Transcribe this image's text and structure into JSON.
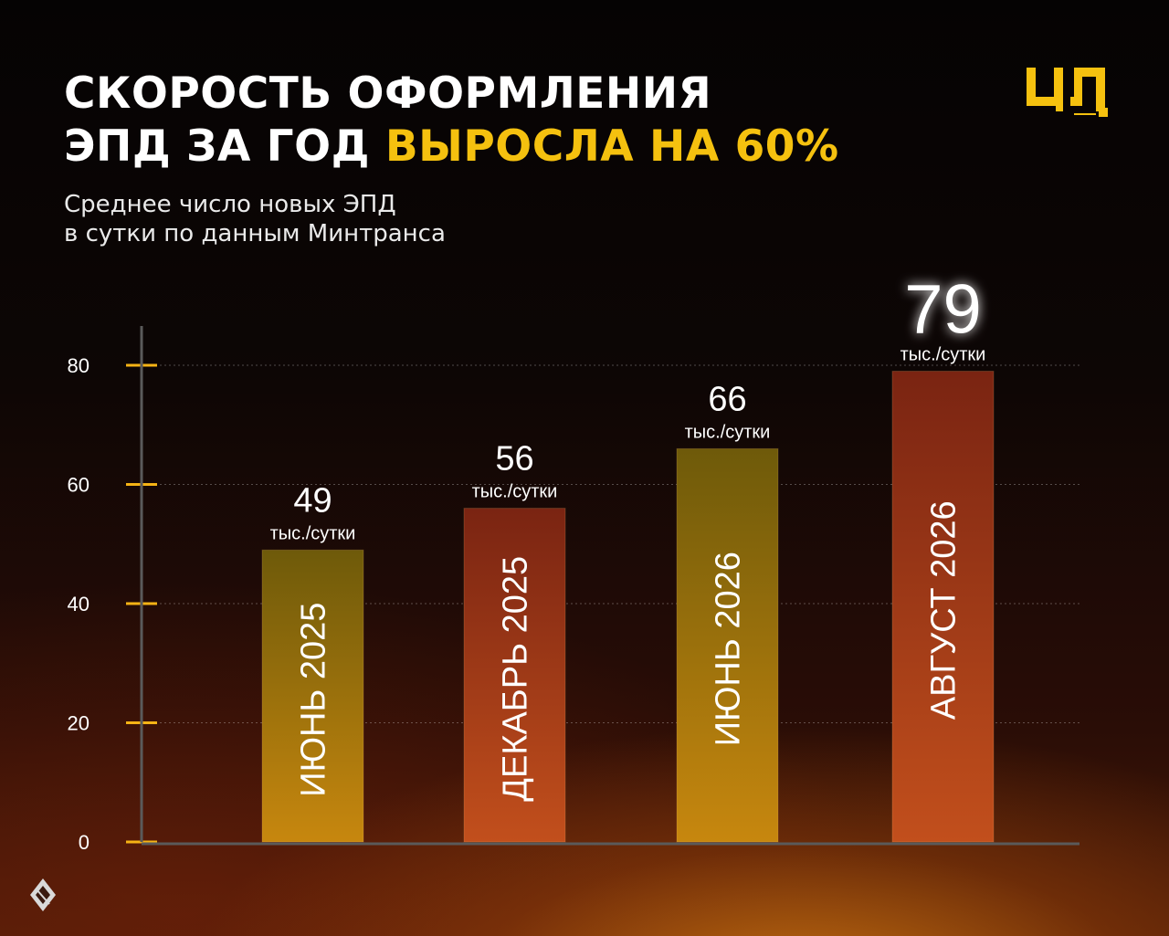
{
  "header": {
    "title_line1": "СКОРОСТЬ ОФОРМЛЕНИЯ",
    "title_line2_prefix": "ЭПД ЗА ГОД ",
    "title_line2_highlight": "ВЫРОСЛА НА 60%",
    "subtitle_line1": "Среднее число новых ЭПД",
    "subtitle_line2": "в сутки по данным Минтранса",
    "logo_text": "ЦЛ",
    "logo_icon": "cl-logo-icon",
    "bottom_icon": "diamond-logo-icon"
  },
  "colors": {
    "accent": "#f5c10f",
    "tick": "#f5b315",
    "axis": "#5a5a5a",
    "bar_red_top": "#7a2412",
    "bar_red_bottom": "#c24f1c",
    "bar_gold_top": "#6e5a0a",
    "bar_gold_bottom": "#c7870e"
  },
  "chart_data": {
    "type": "bar",
    "categories": [
      "ИЮНЬ 2025",
      "ДЕКАБРЬ 2025",
      "ИЮНЬ 2026",
      "АВГУСТ 2026"
    ],
    "values": [
      49,
      56,
      66,
      79
    ],
    "data_labels": [
      "49",
      "56",
      "66",
      "79"
    ],
    "unit_label": "тыс./сутки",
    "bar_styles": [
      "gold",
      "red",
      "gold",
      "red"
    ],
    "yticks": [
      0,
      20,
      40,
      60,
      80
    ],
    "ylim": [
      0,
      86
    ],
    "grid": true,
    "legend": "none"
  }
}
